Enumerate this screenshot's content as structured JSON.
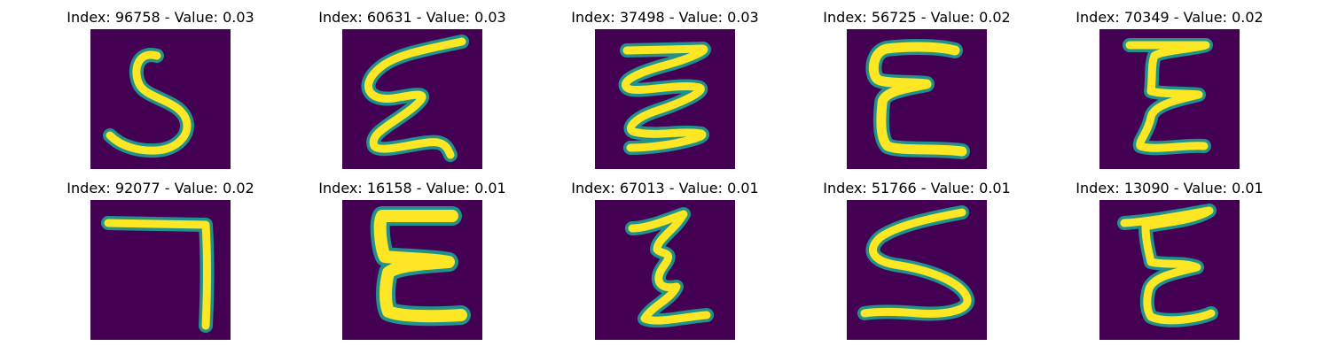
{
  "colors": {
    "background": "#440154",
    "stroke_edge": "#21918c",
    "stroke_core": "#fde725"
  },
  "panels": [
    {
      "title": "Index: 96758 - Value: 0.03",
      "glyph": "S"
    },
    {
      "title": "Index: 60631 - Value: 0.03",
      "glyph": "slanted-E"
    },
    {
      "title": "Index: 37498 - Value: 0.03",
      "glyph": "zigzag"
    },
    {
      "title": "Index: 56725 - Value: 0.02",
      "glyph": "E"
    },
    {
      "title": "Index: 70349 - Value: 0.02",
      "glyph": "E"
    },
    {
      "title": "Index: 92077 - Value: 0.02",
      "glyph": "reverse-L"
    },
    {
      "title": "Index: 16158 - Value: 0.01",
      "glyph": "E"
    },
    {
      "title": "Index: 67013 - Value: 0.01",
      "glyph": "zigzag"
    },
    {
      "title": "Index: 51766 - Value: 0.01",
      "glyph": "S"
    },
    {
      "title": "Index: 13090 - Value: 0.01",
      "glyph": "E"
    }
  ]
}
